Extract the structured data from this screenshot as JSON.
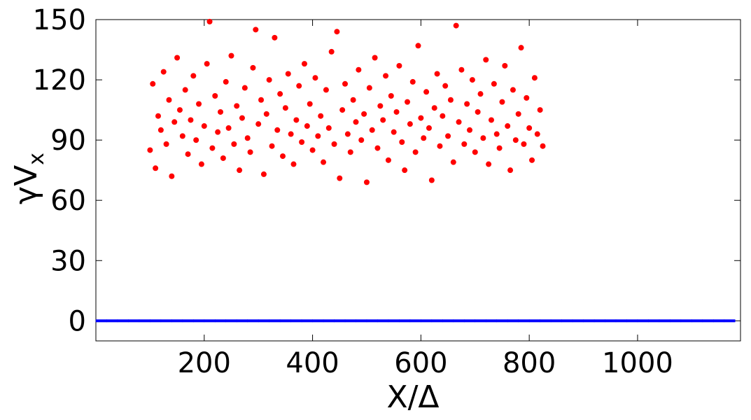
{
  "chart_data": {
    "type": "scatter",
    "xlabel": "X/Δ",
    "ylabel": "γV",
    "ylabel_subscript": "x",
    "xlim": [
      0,
      1190
    ],
    "ylim": [
      -10,
      150
    ],
    "xticks": [
      200,
      400,
      600,
      800,
      1000
    ],
    "yticks": [
      0,
      30,
      60,
      90,
      120,
      150
    ],
    "series": [
      {
        "color": "#ff0000",
        "x": [
          100,
          105,
          110,
          115,
          120,
          125,
          130,
          135,
          140,
          145,
          150,
          155,
          160,
          165,
          170,
          175,
          180,
          185,
          190,
          195,
          200,
          205,
          210,
          215,
          220,
          225,
          230,
          235,
          240,
          245,
          250,
          255,
          260,
          265,
          270,
          275,
          280,
          285,
          290,
          295,
          300,
          305,
          310,
          315,
          320,
          325,
          330,
          335,
          340,
          345,
          350,
          355,
          360,
          365,
          370,
          375,
          380,
          385,
          390,
          395,
          400,
          405,
          410,
          415,
          420,
          425,
          430,
          435,
          440,
          445,
          450,
          455,
          460,
          465,
          470,
          475,
          480,
          485,
          490,
          495,
          500,
          505,
          510,
          515,
          520,
          525,
          530,
          535,
          540,
          545,
          550,
          555,
          560,
          565,
          570,
          575,
          580,
          585,
          590,
          595,
          600,
          605,
          610,
          615,
          620,
          625,
          630,
          635,
          640,
          645,
          650,
          655,
          660,
          665,
          670,
          675,
          680,
          685,
          690,
          695,
          700,
          705,
          710,
          715,
          720,
          725,
          730,
          735,
          740,
          745,
          750,
          755,
          760,
          765,
          770,
          775,
          780,
          785,
          790,
          795,
          800,
          805,
          810,
          815,
          820,
          825
        ],
        "values": [
          85,
          118,
          76,
          102,
          95,
          124,
          88,
          110,
          72,
          99,
          131,
          105,
          92,
          115,
          83,
          100,
          122,
          90,
          108,
          78,
          97,
          128,
          149,
          86,
          112,
          94,
          104,
          81,
          119,
          96,
          132,
          88,
          107,
          75,
          101,
          116,
          91,
          84,
          126,
          145,
          98,
          110,
          73,
          103,
          120,
          87,
          141,
          95,
          113,
          82,
          106,
          123,
          93,
          78,
          100,
          117,
          89,
          128,
          97,
          108,
          85,
          121,
          92,
          102,
          79,
          115,
          96,
          134,
          88,
          144,
          71,
          105,
          118,
          93,
          84,
          110,
          99,
          125,
          90,
          103,
          69,
          116,
          95,
          131,
          86,
          107,
          100,
          122,
          80,
          112,
          94,
          104,
          127,
          89,
          75,
          109,
          98,
          119,
          84,
          137,
          101,
          91,
          114,
          96,
          70,
          106,
          123,
          87,
          102,
          117,
          92,
          110,
          79,
          147,
          99,
          125,
          88,
          108,
          95,
          120,
          84,
          104,
          113,
          91,
          130,
          78,
          100,
          118,
          93,
          86,
          109,
          127,
          97,
          75,
          115,
          90,
          103,
          136,
          88,
          111,
          96,
          80,
          121,
          93,
          105,
          87
        ]
      },
      {
        "color": "#0000ff",
        "x": [
          10,
          30,
          50,
          70,
          90,
          110,
          130,
          150,
          170,
          190,
          210,
          230,
          250,
          270,
          290,
          310,
          330,
          350,
          370,
          390,
          410,
          430,
          450,
          470,
          490,
          510,
          530,
          550,
          570,
          590,
          610,
          630,
          650,
          670,
          690,
          710,
          730,
          750,
          770,
          790,
          810,
          830,
          850,
          870,
          890,
          910,
          930,
          950,
          970,
          990,
          1010,
          1030,
          1050,
          1070,
          1090,
          1110,
          1130,
          1150,
          1170
        ],
        "values": [
          0,
          0,
          0,
          0,
          0,
          0,
          0,
          0,
          0,
          0,
          0,
          0,
          0,
          0,
          0,
          0,
          0,
          0,
          0,
          0,
          0,
          0,
          0,
          0,
          0,
          0,
          0,
          0,
          0,
          0,
          0,
          0,
          0,
          0,
          0,
          0,
          0,
          0,
          0,
          0,
          0,
          0,
          0,
          0,
          0,
          0,
          0,
          0,
          0,
          0,
          0,
          0,
          0,
          0,
          0,
          0,
          0,
          0,
          0
        ]
      }
    ]
  }
}
